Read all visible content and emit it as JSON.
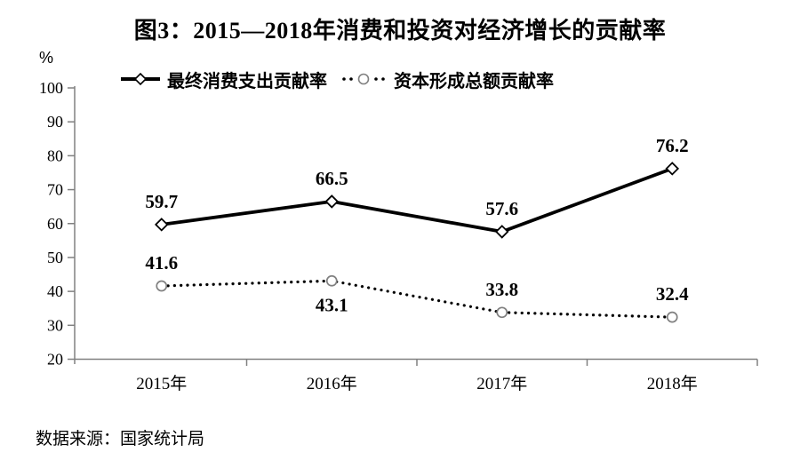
{
  "title": "图3：2015—2018年消费和投资对经济增长的贡献率",
  "source_note": "数据来源：国家统计局",
  "colors": {
    "background": "#ffffff",
    "text": "#000000",
    "axis": "#808080",
    "series_line": "#000000",
    "diamond_marker_stroke": "#000000",
    "circle_marker_stroke": "#808080",
    "marker_fill": "#ffffff"
  },
  "legend": {
    "items": [
      {
        "label": "最终消费支出贡献率",
        "marker": "diamond-solid-line"
      },
      {
        "label": "资本形成总额贡献率",
        "marker": "circle-dotted-line"
      }
    ]
  },
  "chart_data": {
    "type": "line",
    "title": "图3：2015—2018年消费和投资对经济增长的贡献率",
    "categories": [
      "2015年",
      "2016年",
      "2017年",
      "2018年"
    ],
    "series": [
      {
        "name": "最终消费支出贡献率",
        "values": [
          59.7,
          66.5,
          57.6,
          76.2
        ],
        "line_style": "solid",
        "marker": "diamond",
        "label_side": [
          "above",
          "above",
          "above",
          "above"
        ]
      },
      {
        "name": "资本形成总额贡献率",
        "values": [
          41.6,
          43.1,
          33.8,
          32.4
        ],
        "line_style": "dotted",
        "marker": "circle",
        "label_side": [
          "above",
          "below",
          "above",
          "above"
        ]
      }
    ],
    "ylabel": "%",
    "xlabel": "",
    "ylim": [
      20,
      100
    ],
    "y_ticks": [
      100,
      90,
      80,
      70,
      60,
      50,
      40,
      30,
      20
    ],
    "grid": false,
    "legend_position": "top"
  }
}
